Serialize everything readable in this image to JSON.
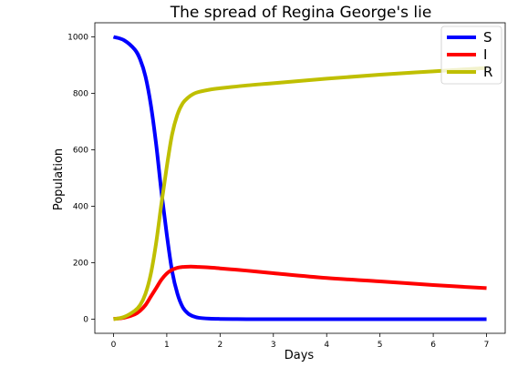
{
  "chart_data": {
    "type": "line",
    "title": "The spread of Regina George's lie",
    "xlabel": "Days",
    "ylabel": "Population",
    "xlim": [
      -0.35,
      7.35
    ],
    "ylim": [
      -50,
      1050
    ],
    "xticks": [
      0,
      1,
      2,
      3,
      4,
      5,
      6,
      7
    ],
    "yticks": [
      0,
      200,
      400,
      600,
      800,
      1000
    ],
    "grid": false,
    "legend_position": "top-right",
    "series": [
      {
        "name": "S",
        "color": "#0000ff",
        "x": [
          0,
          0.2,
          0.4,
          0.5,
          0.6,
          0.7,
          0.8,
          0.9,
          1.0,
          1.1,
          1.2,
          1.3,
          1.4,
          1.5,
          1.6,
          1.8,
          2.0,
          2.5,
          3,
          4,
          5,
          6,
          7
        ],
        "y": [
          1000,
          988,
          955,
          920,
          860,
          760,
          620,
          450,
          300,
          170,
          90,
          42,
          20,
          10,
          5,
          2,
          1,
          0,
          0,
          0,
          0,
          0,
          0
        ]
      },
      {
        "name": "I",
        "color": "#ff0000",
        "x": [
          0,
          0.2,
          0.4,
          0.5,
          0.6,
          0.7,
          0.8,
          0.9,
          1.0,
          1.1,
          1.2,
          1.3,
          1.4,
          1.5,
          1.6,
          1.8,
          2.0,
          2.5,
          3,
          4,
          5,
          6,
          7
        ],
        "y": [
          1,
          5,
          17,
          30,
          50,
          80,
          110,
          140,
          162,
          175,
          182,
          185,
          186,
          186,
          185,
          183,
          180,
          172,
          163,
          146,
          134,
          121,
          110
        ]
      },
      {
        "name": "R",
        "color": "#bfbf00",
        "x": [
          0,
          0.2,
          0.4,
          0.5,
          0.6,
          0.7,
          0.8,
          0.9,
          1.0,
          1.1,
          1.2,
          1.3,
          1.4,
          1.5,
          1.6,
          1.8,
          2.0,
          2.5,
          3,
          4,
          5,
          6,
          7
        ],
        "y": [
          0,
          8,
          30,
          50,
          90,
          160,
          270,
          410,
          540,
          655,
          725,
          765,
          785,
          798,
          805,
          813,
          818,
          828,
          836,
          852,
          866,
          878,
          890
        ]
      }
    ]
  }
}
